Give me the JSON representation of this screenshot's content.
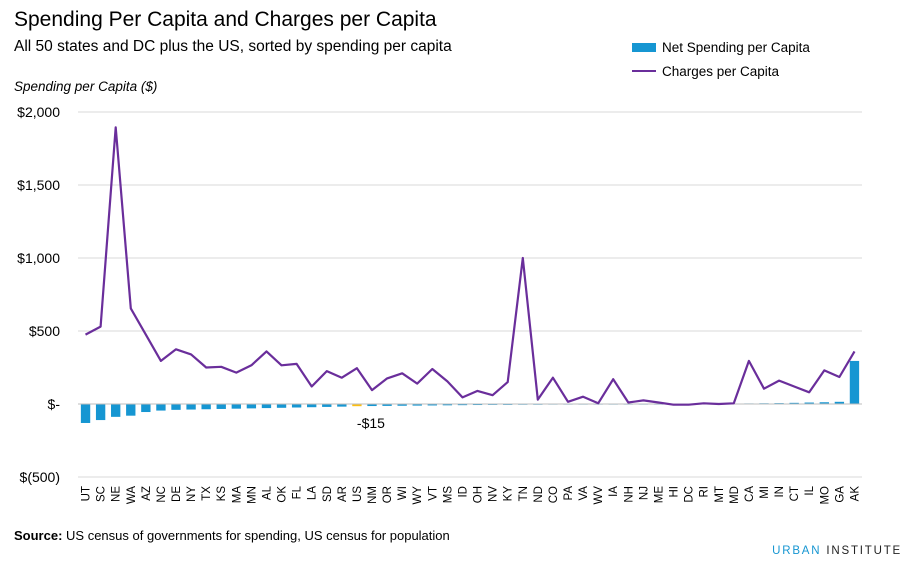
{
  "title": "Spending Per Capita and Charges per Capita",
  "subtitle": "All 50 states and DC plus the US, sorted by spending per capita",
  "y_axis_label": "Spending per Capita ($)",
  "legend": {
    "bar": "Net Spending per Capita",
    "line": "Charges per Capita"
  },
  "source_label": "Source:",
  "source_text": "US census of governments for spending, US census for population",
  "brand": {
    "part1": "URBAN",
    "part2": "INSTITUTE"
  },
  "colors": {
    "bar": "#1696d2",
    "highlight": "#fdbf11",
    "line": "#6a2e9b",
    "grid": "#d9d9d9",
    "zero": "#bdbdbd"
  },
  "chart_data": {
    "type": "bar",
    "categories": [
      "UT",
      "SC",
      "NE",
      "WA",
      "AZ",
      "NC",
      "DE",
      "NY",
      "TX",
      "KS",
      "MA",
      "MN",
      "AL",
      "OK",
      "FL",
      "LA",
      "SD",
      "AR",
      "US",
      "NM",
      "OR",
      "WI",
      "WY",
      "VT",
      "MS",
      "ID",
      "OH",
      "NV",
      "KY",
      "TN",
      "ND",
      "CO",
      "PA",
      "VA",
      "WV",
      "IA",
      "NH",
      "NJ",
      "ME",
      "HI",
      "DC",
      "RI",
      "MT",
      "MD",
      "CA",
      "MI",
      "IN",
      "CT",
      "IL",
      "MO",
      "GA",
      "AK"
    ],
    "highlight_category": "US",
    "annotation": {
      "category": "US",
      "text": "-$15"
    },
    "series": [
      {
        "name": "Net Spending per Capita",
        "type": "bar",
        "values": [
          -130,
          -110,
          -88,
          -80,
          -55,
          -45,
          -40,
          -38,
          -36,
          -34,
          -32,
          -30,
          -28,
          -26,
          -24,
          -22,
          -20,
          -18,
          -15,
          -14,
          -13,
          -12,
          -11,
          -10,
          -9,
          -8,
          -7,
          -6,
          -6,
          -5,
          -5,
          -4,
          -4,
          -3,
          -3,
          -2,
          -2,
          -2,
          -1,
          -1,
          0,
          1,
          2,
          3,
          4,
          5,
          6,
          8,
          10,
          12,
          15,
          295
        ]
      },
      {
        "name": "Charges per Capita",
        "type": "line",
        "values": [
          475,
          530,
          1895,
          655,
          475,
          295,
          375,
          340,
          250,
          255,
          215,
          265,
          360,
          265,
          275,
          120,
          225,
          180,
          245,
          95,
          175,
          210,
          140,
          240,
          155,
          45,
          90,
          60,
          150,
          1000,
          30,
          180,
          15,
          50,
          5,
          170,
          10,
          25,
          10,
          -5,
          -5,
          5,
          0,
          5,
          295,
          105,
          160,
          120,
          80,
          230,
          185,
          360
        ]
      }
    ],
    "ylim": [
      -500,
      2000
    ],
    "yticks": [
      -500,
      0,
      500,
      1000,
      1500,
      2000
    ],
    "ytick_labels": [
      "$(500)",
      "$-",
      "$500",
      "$1,000",
      "$1,500",
      "$2,000"
    ],
    "grid": true,
    "legend_position": "top-right"
  }
}
